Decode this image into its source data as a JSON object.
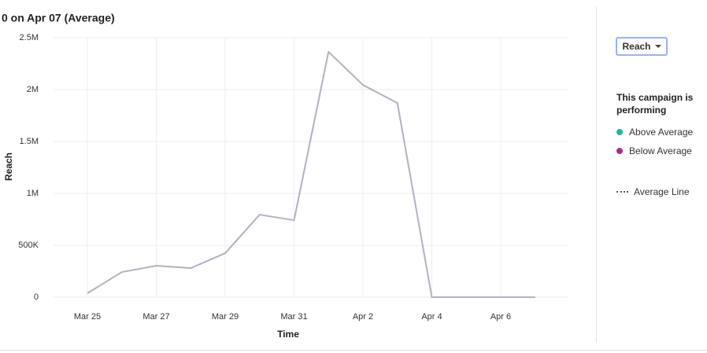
{
  "chart_data": {
    "type": "line",
    "title": "0 on Apr 07 (Average)",
    "x_label": "Time",
    "y_label": "Reach",
    "categories": [
      "Mar 25",
      null,
      "Mar 27",
      null,
      "Mar 29",
      null,
      "Mar 31",
      null,
      "Apr 2",
      null,
      "Apr 4",
      null,
      "Apr 6",
      null
    ],
    "values": [
      38000,
      242000,
      303000,
      280000,
      424000,
      795000,
      742000,
      2364000,
      2045000,
      1871000,
      0,
      0,
      0,
      0
    ],
    "color": "#b3b0c2",
    "ylim": [
      0,
      2500000
    ],
    "yticks": [
      0,
      {
        "value": 500000,
        "label": "500K"
      },
      {
        "value": 1000000,
        "label": "1M"
      },
      {
        "value": 1500000,
        "label": "1.5M"
      },
      {
        "value": 2000000,
        "label": "2M"
      },
      {
        "value": 2500000,
        "label": "2.5M"
      }
    ],
    "grid": true
  },
  "panel": {
    "metric_button": "Reach",
    "legend_title": "This campaign is performing",
    "legend": [
      {
        "label": "Above Average",
        "color": "#1db5a2"
      },
      {
        "label": "Below Average",
        "color": "#a3318c"
      }
    ],
    "average_line": "Average Line"
  }
}
